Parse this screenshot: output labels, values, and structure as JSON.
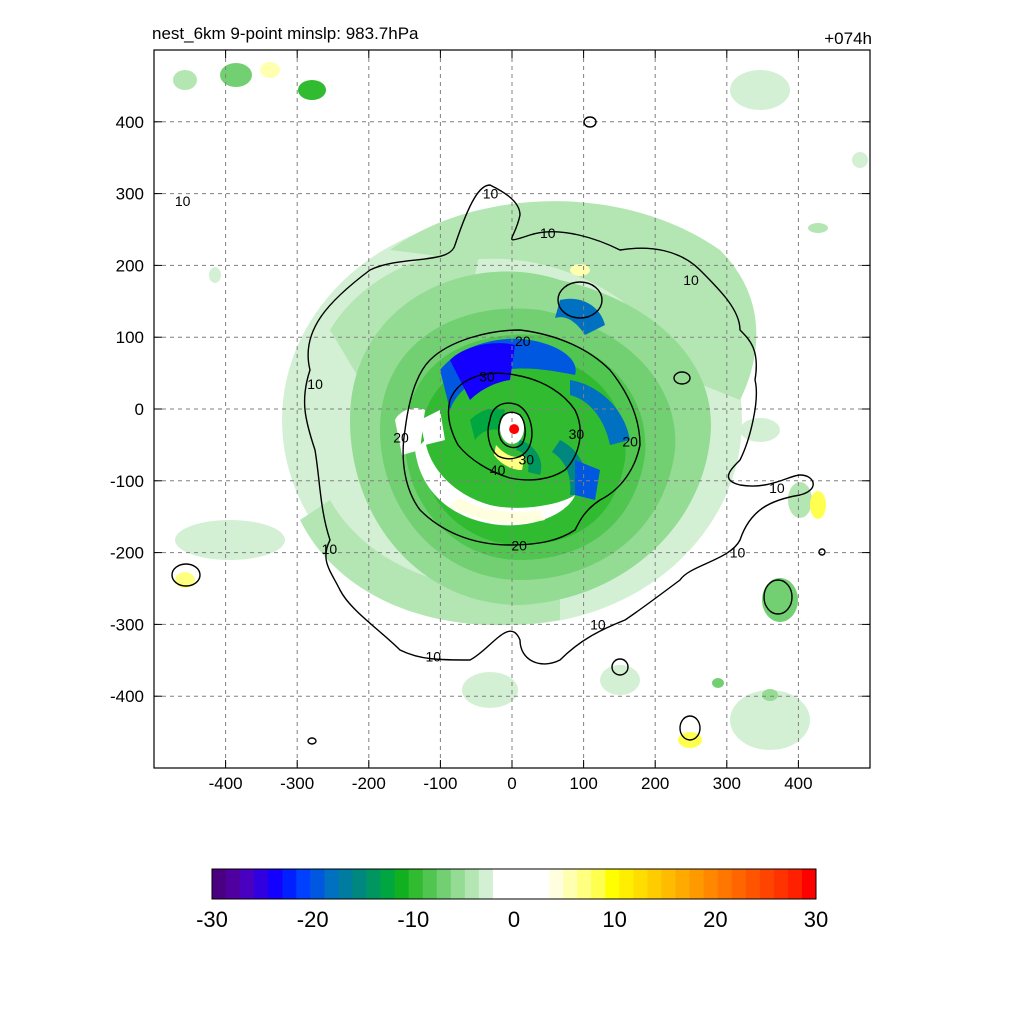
{
  "chart_data": {
    "type": "heatmap",
    "title_left": "nest_6km  9-point minslp: 983.7hPa",
    "title_right": "+074h",
    "xlim": [
      -500,
      500
    ],
    "ylim": [
      -500,
      500
    ],
    "xticks": [
      -400,
      -300,
      -200,
      -100,
      0,
      100,
      200,
      300,
      400
    ],
    "yticks": [
      -400,
      -300,
      -200,
      -100,
      0,
      100,
      200,
      300,
      400
    ],
    "grid": true,
    "contour_levels": [
      10,
      20,
      30,
      40
    ],
    "contour_labels": [
      {
        "text": "10",
        "x": -460,
        "y": 290
      },
      {
        "text": "10",
        "x": -30,
        "y": 300
      },
      {
        "text": "10",
        "x": 50,
        "y": 245
      },
      {
        "text": "10",
        "x": 250,
        "y": 180
      },
      {
        "text": "10",
        "x": -275,
        "y": 35
      },
      {
        "text": "10",
        "x": -255,
        "y": -195
      },
      {
        "text": "10",
        "x": -110,
        "y": -345
      },
      {
        "text": "10",
        "x": 120,
        "y": -300
      },
      {
        "text": "10",
        "x": 315,
        "y": -200
      },
      {
        "text": "10",
        "x": 370,
        "y": -110
      },
      {
        "text": "20",
        "x": 15,
        "y": 95
      },
      {
        "text": "20",
        "x": -155,
        "y": -40
      },
      {
        "text": "20",
        "x": 165,
        "y": -45
      },
      {
        "text": "20",
        "x": 10,
        "y": -190
      },
      {
        "text": "30",
        "x": -35,
        "y": 45
      },
      {
        "text": "30",
        "x": 90,
        "y": -35
      },
      {
        "text": "30",
        "x": 20,
        "y": -70
      },
      {
        "text": "40",
        "x": -20,
        "y": -85
      }
    ],
    "center_marker": {
      "x": 3,
      "y": -28,
      "color": "#ff0000"
    },
    "colorbar": {
      "min": -30,
      "max": 30,
      "tick_labels": [
        "-30",
        "-20",
        "-10",
        "0",
        "10",
        "20",
        "30"
      ],
      "colors": [
        "#4b0082",
        "#5000a0",
        "#4a00c0",
        "#3000e0",
        "#1400ff",
        "#0020ff",
        "#0040ff",
        "#0058e0",
        "#0070c0",
        "#007ca0",
        "#008880",
        "#009660",
        "#00a640",
        "#10b020",
        "#30bb30",
        "#50c550",
        "#72d072",
        "#94db94",
        "#b4e6b4",
        "#d4f0d4",
        "#ffffff",
        "#ffffff",
        "#ffffff",
        "#ffffff",
        "#ffffe0",
        "#ffffb0",
        "#ffff80",
        "#ffff50",
        "#ffff00",
        "#ffee00",
        "#ffdd00",
        "#ffcc00",
        "#ffbb00",
        "#ffaa00",
        "#ff9900",
        "#ff8800",
        "#ff7700",
        "#ff6600",
        "#ff5500",
        "#ff4400",
        "#ff3300",
        "#ff2000",
        "#ff0000"
      ]
    }
  }
}
